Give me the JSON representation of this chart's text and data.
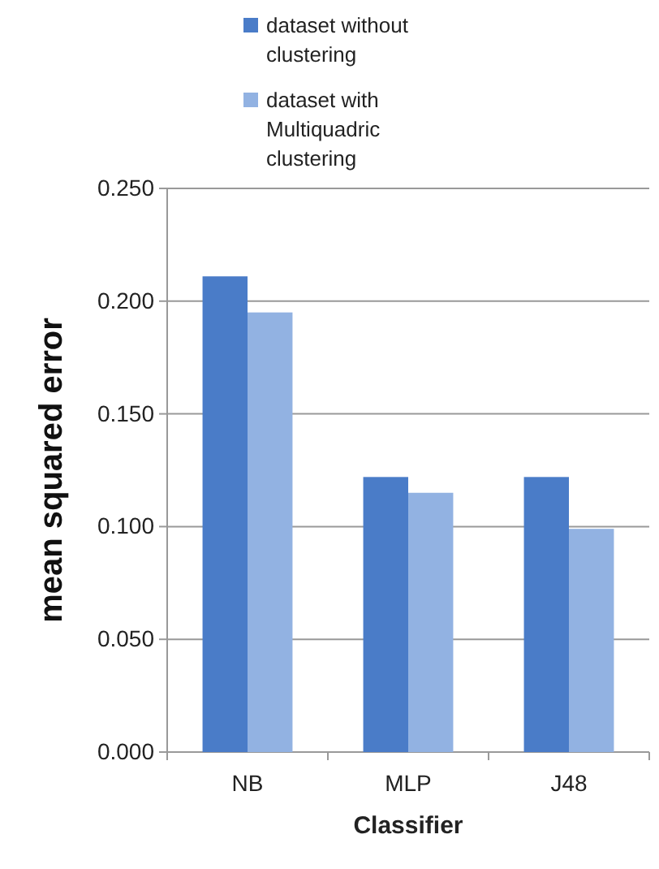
{
  "chart_data": {
    "type": "bar",
    "xlabel": "Classifier",
    "ylabel": "mean squared error",
    "categories": [
      "NB",
      "MLP",
      "J48"
    ],
    "series": [
      {
        "name": "dataset without clustering",
        "color": "#4a7cc8",
        "values": [
          0.211,
          0.122,
          0.122
        ]
      },
      {
        "name": "dataset with Multiquadric clustering",
        "color": "#92b2e2",
        "values": [
          0.195,
          0.115,
          0.099
        ]
      }
    ],
    "ylim": [
      0,
      0.25
    ],
    "yticks": [
      {
        "value": 0,
        "label": "0.000"
      },
      {
        "value": 0.05,
        "label": "0.050"
      },
      {
        "value": 0.1,
        "label": "0.100"
      },
      {
        "value": 0.15,
        "label": "0.150"
      },
      {
        "value": 0.2,
        "label": "0.200"
      },
      {
        "value": 0.25,
        "label": "0.250"
      }
    ],
    "grid": "y",
    "legend": "top left"
  }
}
